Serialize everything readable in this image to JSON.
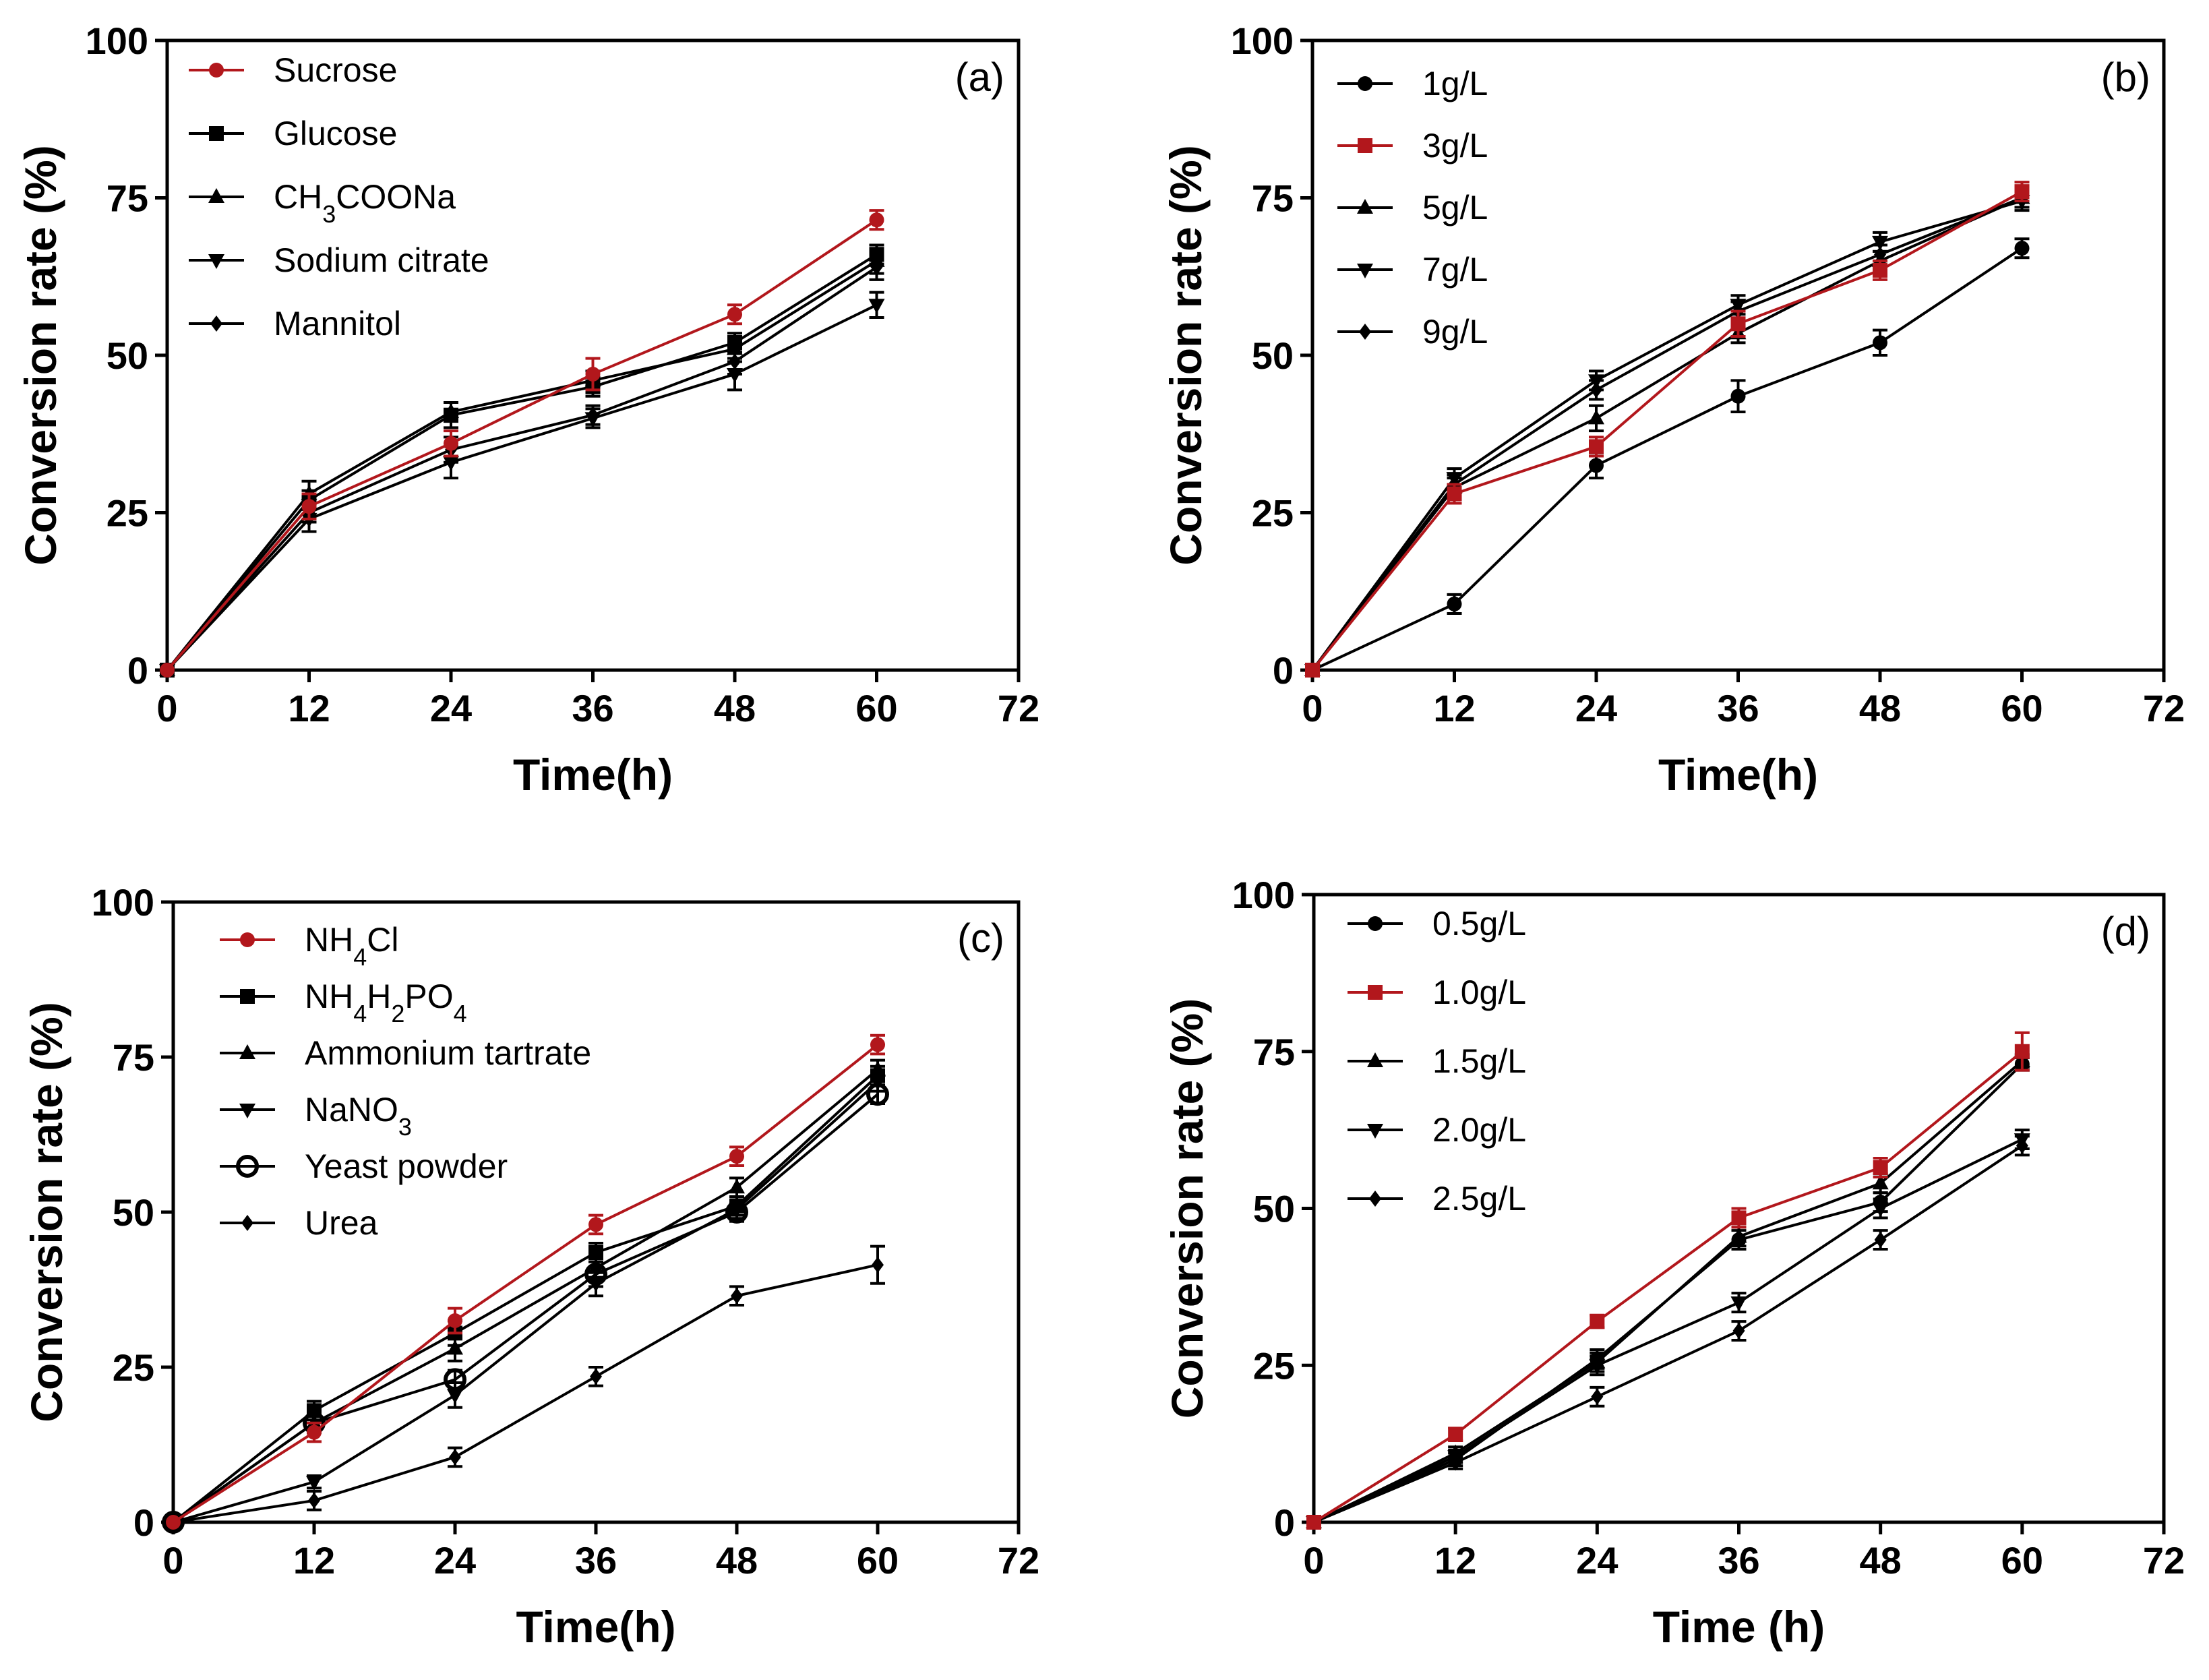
{
  "chart_data": [
    {
      "type": "line",
      "panel_label": "(a)",
      "xlabel": "Time(h)",
      "ylabel": "Conversion rate (%)",
      "xlim": [
        0,
        72
      ],
      "ylim": [
        0,
        100
      ],
      "xticks": [
        "0",
        "12",
        "24",
        "36",
        "48",
        "60",
        "72"
      ],
      "yticks": [
        "0",
        "25",
        "50",
        "75",
        "100"
      ],
      "x": [
        0,
        12,
        24,
        36,
        48,
        60
      ],
      "series": [
        {
          "name": "Sucrose",
          "name_parts": [
            {
              "t": "Sucrose"
            }
          ],
          "color": "#b2171c",
          "marker": "circle",
          "values": [
            0,
            26,
            36,
            47,
            56.5,
            71.5
          ],
          "errors": [
            0,
            2,
            2,
            2.5,
            1.5,
            1.5
          ]
        },
        {
          "name": "Glucose",
          "name_parts": [
            {
              "t": "Glucose"
            }
          ],
          "color": "#000000",
          "marker": "square",
          "values": [
            0,
            27,
            40.5,
            45,
            52,
            66
          ],
          "errors": [
            0,
            1.5,
            2,
            1.5,
            1.5,
            1.5
          ]
        },
        {
          "name": "CH3COONa",
          "name_parts": [
            {
              "t": "CH"
            },
            {
              "t": "3",
              "sub": true
            },
            {
              "t": "COONa"
            }
          ],
          "color": "#000000",
          "marker": "triangle-up",
          "values": [
            0,
            28,
            41,
            46,
            51,
            65
          ],
          "errors": [
            0,
            2,
            1.5,
            1.5,
            2,
            2
          ]
        },
        {
          "name": "Sodium citrate",
          "name_parts": [
            {
              "t": "Sodium citrate"
            }
          ],
          "color": "#000000",
          "marker": "triangle-down",
          "values": [
            0,
            24,
            33,
            40,
            47,
            58
          ],
          "errors": [
            0,
            2,
            2.5,
            1.5,
            2.5,
            2
          ]
        },
        {
          "name": "Mannitol",
          "name_parts": [
            {
              "t": "Mannitol"
            }
          ],
          "color": "#000000",
          "marker": "diamond",
          "values": [
            0,
            25,
            35,
            40.5,
            49,
            64
          ],
          "errors": [
            0,
            1.5,
            2,
            1.5,
            2,
            2
          ]
        }
      ]
    },
    {
      "type": "line",
      "panel_label": "(b)",
      "xlabel": "Time(h)",
      "ylabel": "Conversion rate (%)",
      "xlim": [
        0,
        72
      ],
      "ylim": [
        0,
        100
      ],
      "xticks": [
        "0",
        "12",
        "24",
        "36",
        "48",
        "60",
        "72"
      ],
      "yticks": [
        "0",
        "25",
        "50",
        "75",
        "100"
      ],
      "x": [
        0,
        12,
        24,
        36,
        48,
        60
      ],
      "series": [
        {
          "name": "1g/L",
          "name_parts": [
            {
              "t": "1g/L"
            }
          ],
          "color": "#000000",
          "marker": "circle",
          "values": [
            0,
            10.5,
            32.5,
            43.5,
            52,
            67
          ],
          "errors": [
            0,
            1.5,
            2,
            2.5,
            2,
            1.5
          ]
        },
        {
          "name": "3g/L",
          "name_parts": [
            {
              "t": "3g/L"
            }
          ],
          "color": "#b2171c",
          "marker": "square",
          "values": [
            0,
            28,
            35.5,
            55,
            63.5,
            76
          ],
          "errors": [
            0,
            1.5,
            1.5,
            2,
            1.5,
            1.5
          ]
        },
        {
          "name": "5g/L",
          "name_parts": [
            {
              "t": "5g/L"
            }
          ],
          "color": "#000000",
          "marker": "triangle-up",
          "values": [
            0,
            29,
            40,
            53.5,
            65,
            75
          ],
          "errors": [
            0,
            1.5,
            2,
            1.5,
            1.5,
            1.5
          ]
        },
        {
          "name": "7g/L",
          "name_parts": [
            {
              "t": "7g/L"
            }
          ],
          "color": "#000000",
          "marker": "triangle-down",
          "values": [
            0,
            30.5,
            46,
            58,
            68,
            74.5
          ],
          "errors": [
            0,
            1.5,
            1.5,
            1.5,
            1.5,
            1.5
          ]
        },
        {
          "name": "9g/L",
          "name_parts": [
            {
              "t": "9g/L"
            }
          ],
          "color": "#000000",
          "marker": "diamond",
          "values": [
            0,
            29.5,
            44.5,
            57,
            66,
            75
          ],
          "errors": [
            0,
            1.5,
            1.5,
            1.5,
            1.5,
            1.5
          ]
        }
      ]
    },
    {
      "type": "line",
      "panel_label": "(c)",
      "xlabel": "Time(h)",
      "ylabel": "Conversion rate (%)",
      "xlim": [
        0,
        72
      ],
      "ylim": [
        0,
        100
      ],
      "xticks": [
        "0",
        "12",
        "24",
        "36",
        "48",
        "60",
        "72"
      ],
      "yticks": [
        "0",
        "25",
        "50",
        "75",
        "100"
      ],
      "x": [
        0,
        12,
        24,
        36,
        48,
        60
      ],
      "series": [
        {
          "name": "NH4Cl",
          "name_parts": [
            {
              "t": "NH"
            },
            {
              "t": "4",
              "sub": true
            },
            {
              "t": "Cl"
            }
          ],
          "color": "#b2171c",
          "marker": "circle",
          "values": [
            0,
            14.5,
            32.5,
            48,
            59,
            77
          ],
          "errors": [
            0,
            1.5,
            2,
            1.5,
            1.5,
            1.5
          ]
        },
        {
          "name": "NH4H2PO4",
          "name_parts": [
            {
              "t": "NH"
            },
            {
              "t": "4",
              "sub": true
            },
            {
              "t": "H"
            },
            {
              "t": "2",
              "sub": true
            },
            {
              "t": "PO"
            },
            {
              "t": "4",
              "sub": true
            }
          ],
          "color": "#000000",
          "marker": "square",
          "values": [
            0,
            18,
            30.5,
            43.5,
            51,
            72
          ],
          "errors": [
            0,
            1.5,
            2,
            1.5,
            1.5,
            1.5
          ]
        },
        {
          "name": "Ammonium tartrate",
          "name_parts": [
            {
              "t": "Ammonium tartrate"
            }
          ],
          "color": "#000000",
          "marker": "triangle-up",
          "values": [
            0,
            16,
            28,
            41,
            54,
            73
          ],
          "errors": [
            0,
            1.5,
            2,
            1.5,
            1.5,
            1.5
          ]
        },
        {
          "name": "NaNO3",
          "name_parts": [
            {
              "t": "NaNO"
            },
            {
              "t": "3",
              "sub": true
            }
          ],
          "color": "#000000",
          "marker": "triangle-down",
          "values": [
            0,
            6.5,
            20.5,
            38.5,
            50.5,
            71
          ],
          "errors": [
            0,
            1,
            2,
            2,
            1.5,
            1.5
          ]
        },
        {
          "name": "Yeast powder",
          "name_parts": [
            {
              "t": "Yeast powder"
            }
          ],
          "color": "#000000",
          "marker": "open-circle",
          "values": [
            0,
            16,
            23,
            40,
            50,
            69
          ],
          "errors": [
            0,
            1.5,
            1.5,
            2,
            1.5,
            1.5
          ]
        },
        {
          "name": "Urea",
          "name_parts": [
            {
              "t": "Urea"
            }
          ],
          "color": "#000000",
          "marker": "diamond",
          "values": [
            0,
            3.5,
            10.5,
            23.5,
            36.5,
            41.5
          ],
          "errors": [
            0,
            1.5,
            1.5,
            1.5,
            1.5,
            3
          ]
        }
      ]
    },
    {
      "type": "line",
      "panel_label": "(d)",
      "xlabel": "Time (h)",
      "ylabel": "Conversion rate (%)",
      "xlim": [
        0,
        72
      ],
      "ylim": [
        0,
        100
      ],
      "xticks": [
        "0",
        "12",
        "24",
        "36",
        "48",
        "60",
        "72"
      ],
      "yticks": [
        "0",
        "25",
        "50",
        "75",
        "100"
      ],
      "x": [
        0,
        12,
        24,
        36,
        48,
        60
      ],
      "series": [
        {
          "name": "0.5g/L",
          "name_parts": [
            {
              "t": "0.5g/L"
            }
          ],
          "color": "#000000",
          "marker": "circle",
          "values": [
            0,
            10,
            26,
            45,
            51,
            73
          ],
          "errors": [
            0,
            1,
            1.5,
            1.5,
            1.5,
            1
          ]
        },
        {
          "name": "1.0g/L",
          "name_parts": [
            {
              "t": "1.0g/L"
            }
          ],
          "color": "#b2171c",
          "marker": "square",
          "values": [
            0,
            14,
            32,
            48.5,
            56.5,
            75
          ],
          "errors": [
            0,
            1,
            1,
            1.5,
            1.5,
            3
          ]
        },
        {
          "name": "1.5g/L",
          "name_parts": [
            {
              "t": "1.5g/L"
            }
          ],
          "color": "#000000",
          "marker": "triangle-up",
          "values": [
            0,
            11,
            25.5,
            45.5,
            54,
            73.5
          ],
          "errors": [
            0,
            1,
            1.5,
            1.5,
            1.5,
            1
          ]
        },
        {
          "name": "2.0g/L",
          "name_parts": [
            {
              "t": "2.0g/L"
            }
          ],
          "color": "#000000",
          "marker": "triangle-down",
          "values": [
            0,
            10.5,
            25,
            35,
            50,
            61
          ],
          "errors": [
            0,
            1,
            1.5,
            1.5,
            1.5,
            1.5
          ]
        },
        {
          "name": "2.5g/L",
          "name_parts": [
            {
              "t": "2.5g/L"
            }
          ],
          "color": "#000000",
          "marker": "diamond",
          "values": [
            0,
            9.5,
            20,
            30.5,
            45,
            60
          ],
          "errors": [
            0,
            1,
            1.5,
            1.5,
            1.5,
            1.5
          ]
        }
      ]
    }
  ]
}
